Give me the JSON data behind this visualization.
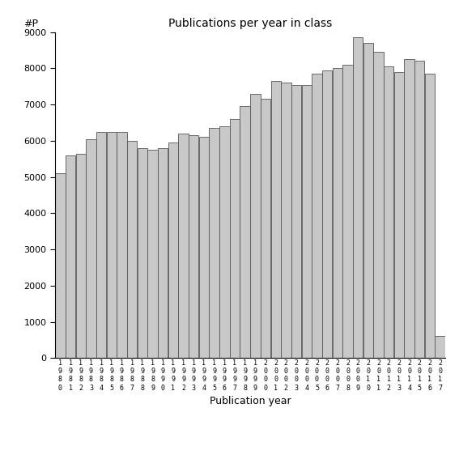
{
  "title": "Publications per year in class",
  "xlabel": "Publication year",
  "ylabel": "#P",
  "bar_color": "#c8c8c8",
  "bar_edge_color": "#555555",
  "background_color": "#ffffff",
  "ylim": [
    0,
    9000
  ],
  "yticks": [
    0,
    1000,
    2000,
    3000,
    4000,
    5000,
    6000,
    7000,
    8000,
    9000
  ],
  "years": [
    "1980",
    "1981",
    "1982",
    "1983",
    "1984",
    "1985",
    "1986",
    "1987",
    "1988",
    "1989",
    "1990",
    "1991",
    "1992",
    "1993",
    "1994",
    "1995",
    "1996",
    "1997",
    "1998",
    "1999",
    "2000",
    "2001",
    "2002",
    "2003",
    "2004",
    "2005",
    "2006",
    "2007",
    "2008",
    "2009",
    "2010",
    "2011",
    "2012",
    "2013",
    "2014",
    "2015",
    "2016",
    "2017"
  ],
  "values": [
    5100,
    5600,
    5650,
    6050,
    6250,
    6250,
    6250,
    6000,
    5800,
    5750,
    5800,
    5950,
    6200,
    6150,
    6100,
    6350,
    6400,
    6600,
    6950,
    7300,
    7150,
    7650,
    7600,
    7550,
    7550,
    7850,
    7950,
    8000,
    8100,
    8850,
    8700,
    8450,
    8050,
    7900,
    8250,
    8200,
    7850,
    600
  ]
}
